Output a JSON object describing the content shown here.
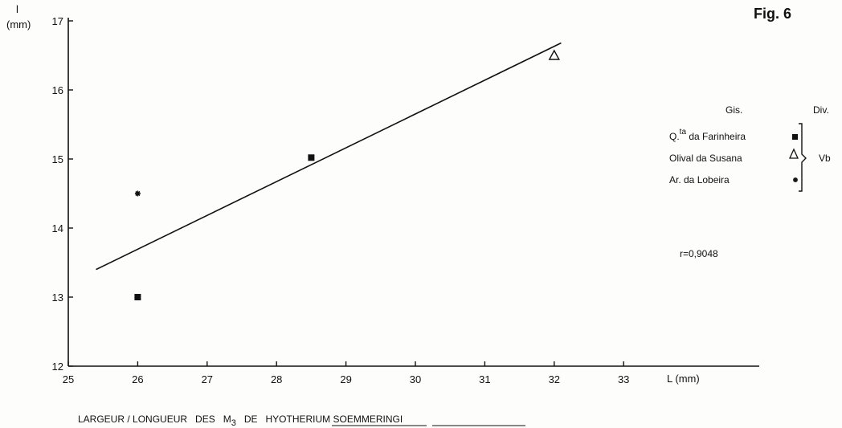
{
  "chart_data": {
    "type": "scatter",
    "fig_label": "Fig. 6",
    "caption": {
      "prefix": "LARGEUR / LONGUEUR   DES   M",
      "subscript": "3",
      "middle": "   DE   ",
      "genus": "HYOTHERIUM",
      "species": "SOEMMERINGI"
    },
    "xlabel": "L (mm)",
    "ylabel_symbol": "l",
    "ylabel_unit": "(mm)",
    "xlim": [
      25,
      35
    ],
    "ylim": [
      12,
      17
    ],
    "x_ticks": [
      "25",
      "26",
      "27",
      "28",
      "29",
      "30",
      "31",
      "32",
      "33"
    ],
    "x_tick_values": [
      25,
      26,
      27,
      28,
      29,
      30,
      31,
      32,
      33
    ],
    "y_ticks": [
      "12",
      "13",
      "14",
      "15",
      "16",
      "17"
    ],
    "y_tick_values": [
      12,
      13,
      14,
      15,
      16,
      17
    ],
    "grid": false,
    "series": [
      {
        "name": "Q.ta da Farinheira",
        "marker": "square",
        "points": [
          [
            26,
            13.0
          ],
          [
            28.5,
            15.02
          ]
        ]
      },
      {
        "name": "Olival da Susana",
        "marker": "triangle",
        "points": [
          [
            32,
            16.5
          ]
        ]
      },
      {
        "name": "Ar. da Lobeira",
        "marker": "asterisk",
        "points": [
          [
            26,
            14.5
          ]
        ]
      }
    ],
    "regression_line": {
      "x": [
        25.4,
        32.1
      ],
      "y": [
        13.4,
        16.68
      ]
    },
    "legend": {
      "placement": "right",
      "header_gis": "Gis.",
      "header_div": "Div.",
      "entries": [
        {
          "label_main": "Q.",
          "label_sup": "ta",
          "label_rest": " da Farinheira",
          "marker": "square"
        },
        {
          "label_main": "Olival da Susana",
          "label_sup": "",
          "label_rest": "",
          "marker": "triangle"
        },
        {
          "label_main": "Ar. da Lobeira",
          "label_sup": "",
          "label_rest": "",
          "marker": "asterisk"
        }
      ],
      "div_value": "Vb"
    },
    "annotation": "r=0,9048"
  }
}
